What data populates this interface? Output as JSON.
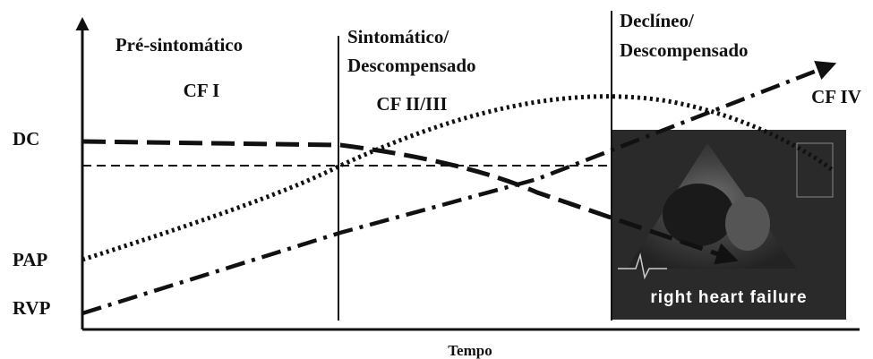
{
  "phases": [
    {
      "title": [
        "Pré-sintomático"
      ],
      "class": "CF I"
    },
    {
      "title": [
        "Sintomático/",
        "Descompensado"
      ],
      "class": "CF II/III"
    },
    {
      "title": [
        "Declíneo/",
        "Descompensado"
      ],
      "class": "CF IV"
    }
  ],
  "curve_labels": [
    "DC",
    "PAP",
    "RVP"
  ],
  "x_axis_label": "Tempo",
  "inset": {
    "caption": "right heart failure"
  }
}
